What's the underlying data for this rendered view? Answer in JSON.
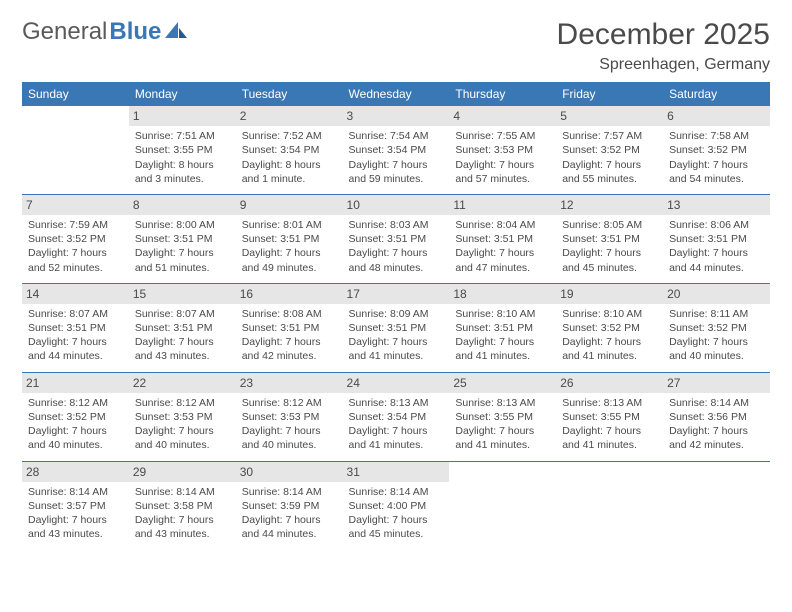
{
  "colors": {
    "header_bg": "#3a78b5",
    "header_text": "#ffffff",
    "daynum_bg": "#e6e6e6",
    "row_sep": "#3a78b5",
    "body_text": "#4a4a4a",
    "page_bg": "#ffffff",
    "logo_blue": "#3a78b5",
    "logo_gray": "#5a5a5a"
  },
  "logo": {
    "text1": "General",
    "text2": "Blue"
  },
  "title": "December 2025",
  "location": "Spreenhagen, Germany",
  "weekdays": [
    "Sunday",
    "Monday",
    "Tuesday",
    "Wednesday",
    "Thursday",
    "Friday",
    "Saturday"
  ],
  "weeks": [
    [
      {
        "day": "",
        "sunrise": "",
        "sunset": "",
        "daylight": ""
      },
      {
        "day": "1",
        "sunrise": "Sunrise: 7:51 AM",
        "sunset": "Sunset: 3:55 PM",
        "daylight": "Daylight: 8 hours and 3 minutes."
      },
      {
        "day": "2",
        "sunrise": "Sunrise: 7:52 AM",
        "sunset": "Sunset: 3:54 PM",
        "daylight": "Daylight: 8 hours and 1 minute."
      },
      {
        "day": "3",
        "sunrise": "Sunrise: 7:54 AM",
        "sunset": "Sunset: 3:54 PM",
        "daylight": "Daylight: 7 hours and 59 minutes."
      },
      {
        "day": "4",
        "sunrise": "Sunrise: 7:55 AM",
        "sunset": "Sunset: 3:53 PM",
        "daylight": "Daylight: 7 hours and 57 minutes."
      },
      {
        "day": "5",
        "sunrise": "Sunrise: 7:57 AM",
        "sunset": "Sunset: 3:52 PM",
        "daylight": "Daylight: 7 hours and 55 minutes."
      },
      {
        "day": "6",
        "sunrise": "Sunrise: 7:58 AM",
        "sunset": "Sunset: 3:52 PM",
        "daylight": "Daylight: 7 hours and 54 minutes."
      }
    ],
    [
      {
        "day": "7",
        "sunrise": "Sunrise: 7:59 AM",
        "sunset": "Sunset: 3:52 PM",
        "daylight": "Daylight: 7 hours and 52 minutes."
      },
      {
        "day": "8",
        "sunrise": "Sunrise: 8:00 AM",
        "sunset": "Sunset: 3:51 PM",
        "daylight": "Daylight: 7 hours and 51 minutes."
      },
      {
        "day": "9",
        "sunrise": "Sunrise: 8:01 AM",
        "sunset": "Sunset: 3:51 PM",
        "daylight": "Daylight: 7 hours and 49 minutes."
      },
      {
        "day": "10",
        "sunrise": "Sunrise: 8:03 AM",
        "sunset": "Sunset: 3:51 PM",
        "daylight": "Daylight: 7 hours and 48 minutes."
      },
      {
        "day": "11",
        "sunrise": "Sunrise: 8:04 AM",
        "sunset": "Sunset: 3:51 PM",
        "daylight": "Daylight: 7 hours and 47 minutes."
      },
      {
        "day": "12",
        "sunrise": "Sunrise: 8:05 AM",
        "sunset": "Sunset: 3:51 PM",
        "daylight": "Daylight: 7 hours and 45 minutes."
      },
      {
        "day": "13",
        "sunrise": "Sunrise: 8:06 AM",
        "sunset": "Sunset: 3:51 PM",
        "daylight": "Daylight: 7 hours and 44 minutes."
      }
    ],
    [
      {
        "day": "14",
        "sunrise": "Sunrise: 8:07 AM",
        "sunset": "Sunset: 3:51 PM",
        "daylight": "Daylight: 7 hours and 44 minutes."
      },
      {
        "day": "15",
        "sunrise": "Sunrise: 8:07 AM",
        "sunset": "Sunset: 3:51 PM",
        "daylight": "Daylight: 7 hours and 43 minutes."
      },
      {
        "day": "16",
        "sunrise": "Sunrise: 8:08 AM",
        "sunset": "Sunset: 3:51 PM",
        "daylight": "Daylight: 7 hours and 42 minutes."
      },
      {
        "day": "17",
        "sunrise": "Sunrise: 8:09 AM",
        "sunset": "Sunset: 3:51 PM",
        "daylight": "Daylight: 7 hours and 41 minutes."
      },
      {
        "day": "18",
        "sunrise": "Sunrise: 8:10 AM",
        "sunset": "Sunset: 3:51 PM",
        "daylight": "Daylight: 7 hours and 41 minutes."
      },
      {
        "day": "19",
        "sunrise": "Sunrise: 8:10 AM",
        "sunset": "Sunset: 3:52 PM",
        "daylight": "Daylight: 7 hours and 41 minutes."
      },
      {
        "day": "20",
        "sunrise": "Sunrise: 8:11 AM",
        "sunset": "Sunset: 3:52 PM",
        "daylight": "Daylight: 7 hours and 40 minutes."
      }
    ],
    [
      {
        "day": "21",
        "sunrise": "Sunrise: 8:12 AM",
        "sunset": "Sunset: 3:52 PM",
        "daylight": "Daylight: 7 hours and 40 minutes."
      },
      {
        "day": "22",
        "sunrise": "Sunrise: 8:12 AM",
        "sunset": "Sunset: 3:53 PM",
        "daylight": "Daylight: 7 hours and 40 minutes."
      },
      {
        "day": "23",
        "sunrise": "Sunrise: 8:12 AM",
        "sunset": "Sunset: 3:53 PM",
        "daylight": "Daylight: 7 hours and 40 minutes."
      },
      {
        "day": "24",
        "sunrise": "Sunrise: 8:13 AM",
        "sunset": "Sunset: 3:54 PM",
        "daylight": "Daylight: 7 hours and 41 minutes."
      },
      {
        "day": "25",
        "sunrise": "Sunrise: 8:13 AM",
        "sunset": "Sunset: 3:55 PM",
        "daylight": "Daylight: 7 hours and 41 minutes."
      },
      {
        "day": "26",
        "sunrise": "Sunrise: 8:13 AM",
        "sunset": "Sunset: 3:55 PM",
        "daylight": "Daylight: 7 hours and 41 minutes."
      },
      {
        "day": "27",
        "sunrise": "Sunrise: 8:14 AM",
        "sunset": "Sunset: 3:56 PM",
        "daylight": "Daylight: 7 hours and 42 minutes."
      }
    ],
    [
      {
        "day": "28",
        "sunrise": "Sunrise: 8:14 AM",
        "sunset": "Sunset: 3:57 PM",
        "daylight": "Daylight: 7 hours and 43 minutes."
      },
      {
        "day": "29",
        "sunrise": "Sunrise: 8:14 AM",
        "sunset": "Sunset: 3:58 PM",
        "daylight": "Daylight: 7 hours and 43 minutes."
      },
      {
        "day": "30",
        "sunrise": "Sunrise: 8:14 AM",
        "sunset": "Sunset: 3:59 PM",
        "daylight": "Daylight: 7 hours and 44 minutes."
      },
      {
        "day": "31",
        "sunrise": "Sunrise: 8:14 AM",
        "sunset": "Sunset: 4:00 PM",
        "daylight": "Daylight: 7 hours and 45 minutes."
      },
      {
        "day": "",
        "sunrise": "",
        "sunset": "",
        "daylight": ""
      },
      {
        "day": "",
        "sunrise": "",
        "sunset": "",
        "daylight": ""
      },
      {
        "day": "",
        "sunrise": "",
        "sunset": "",
        "daylight": ""
      }
    ]
  ]
}
